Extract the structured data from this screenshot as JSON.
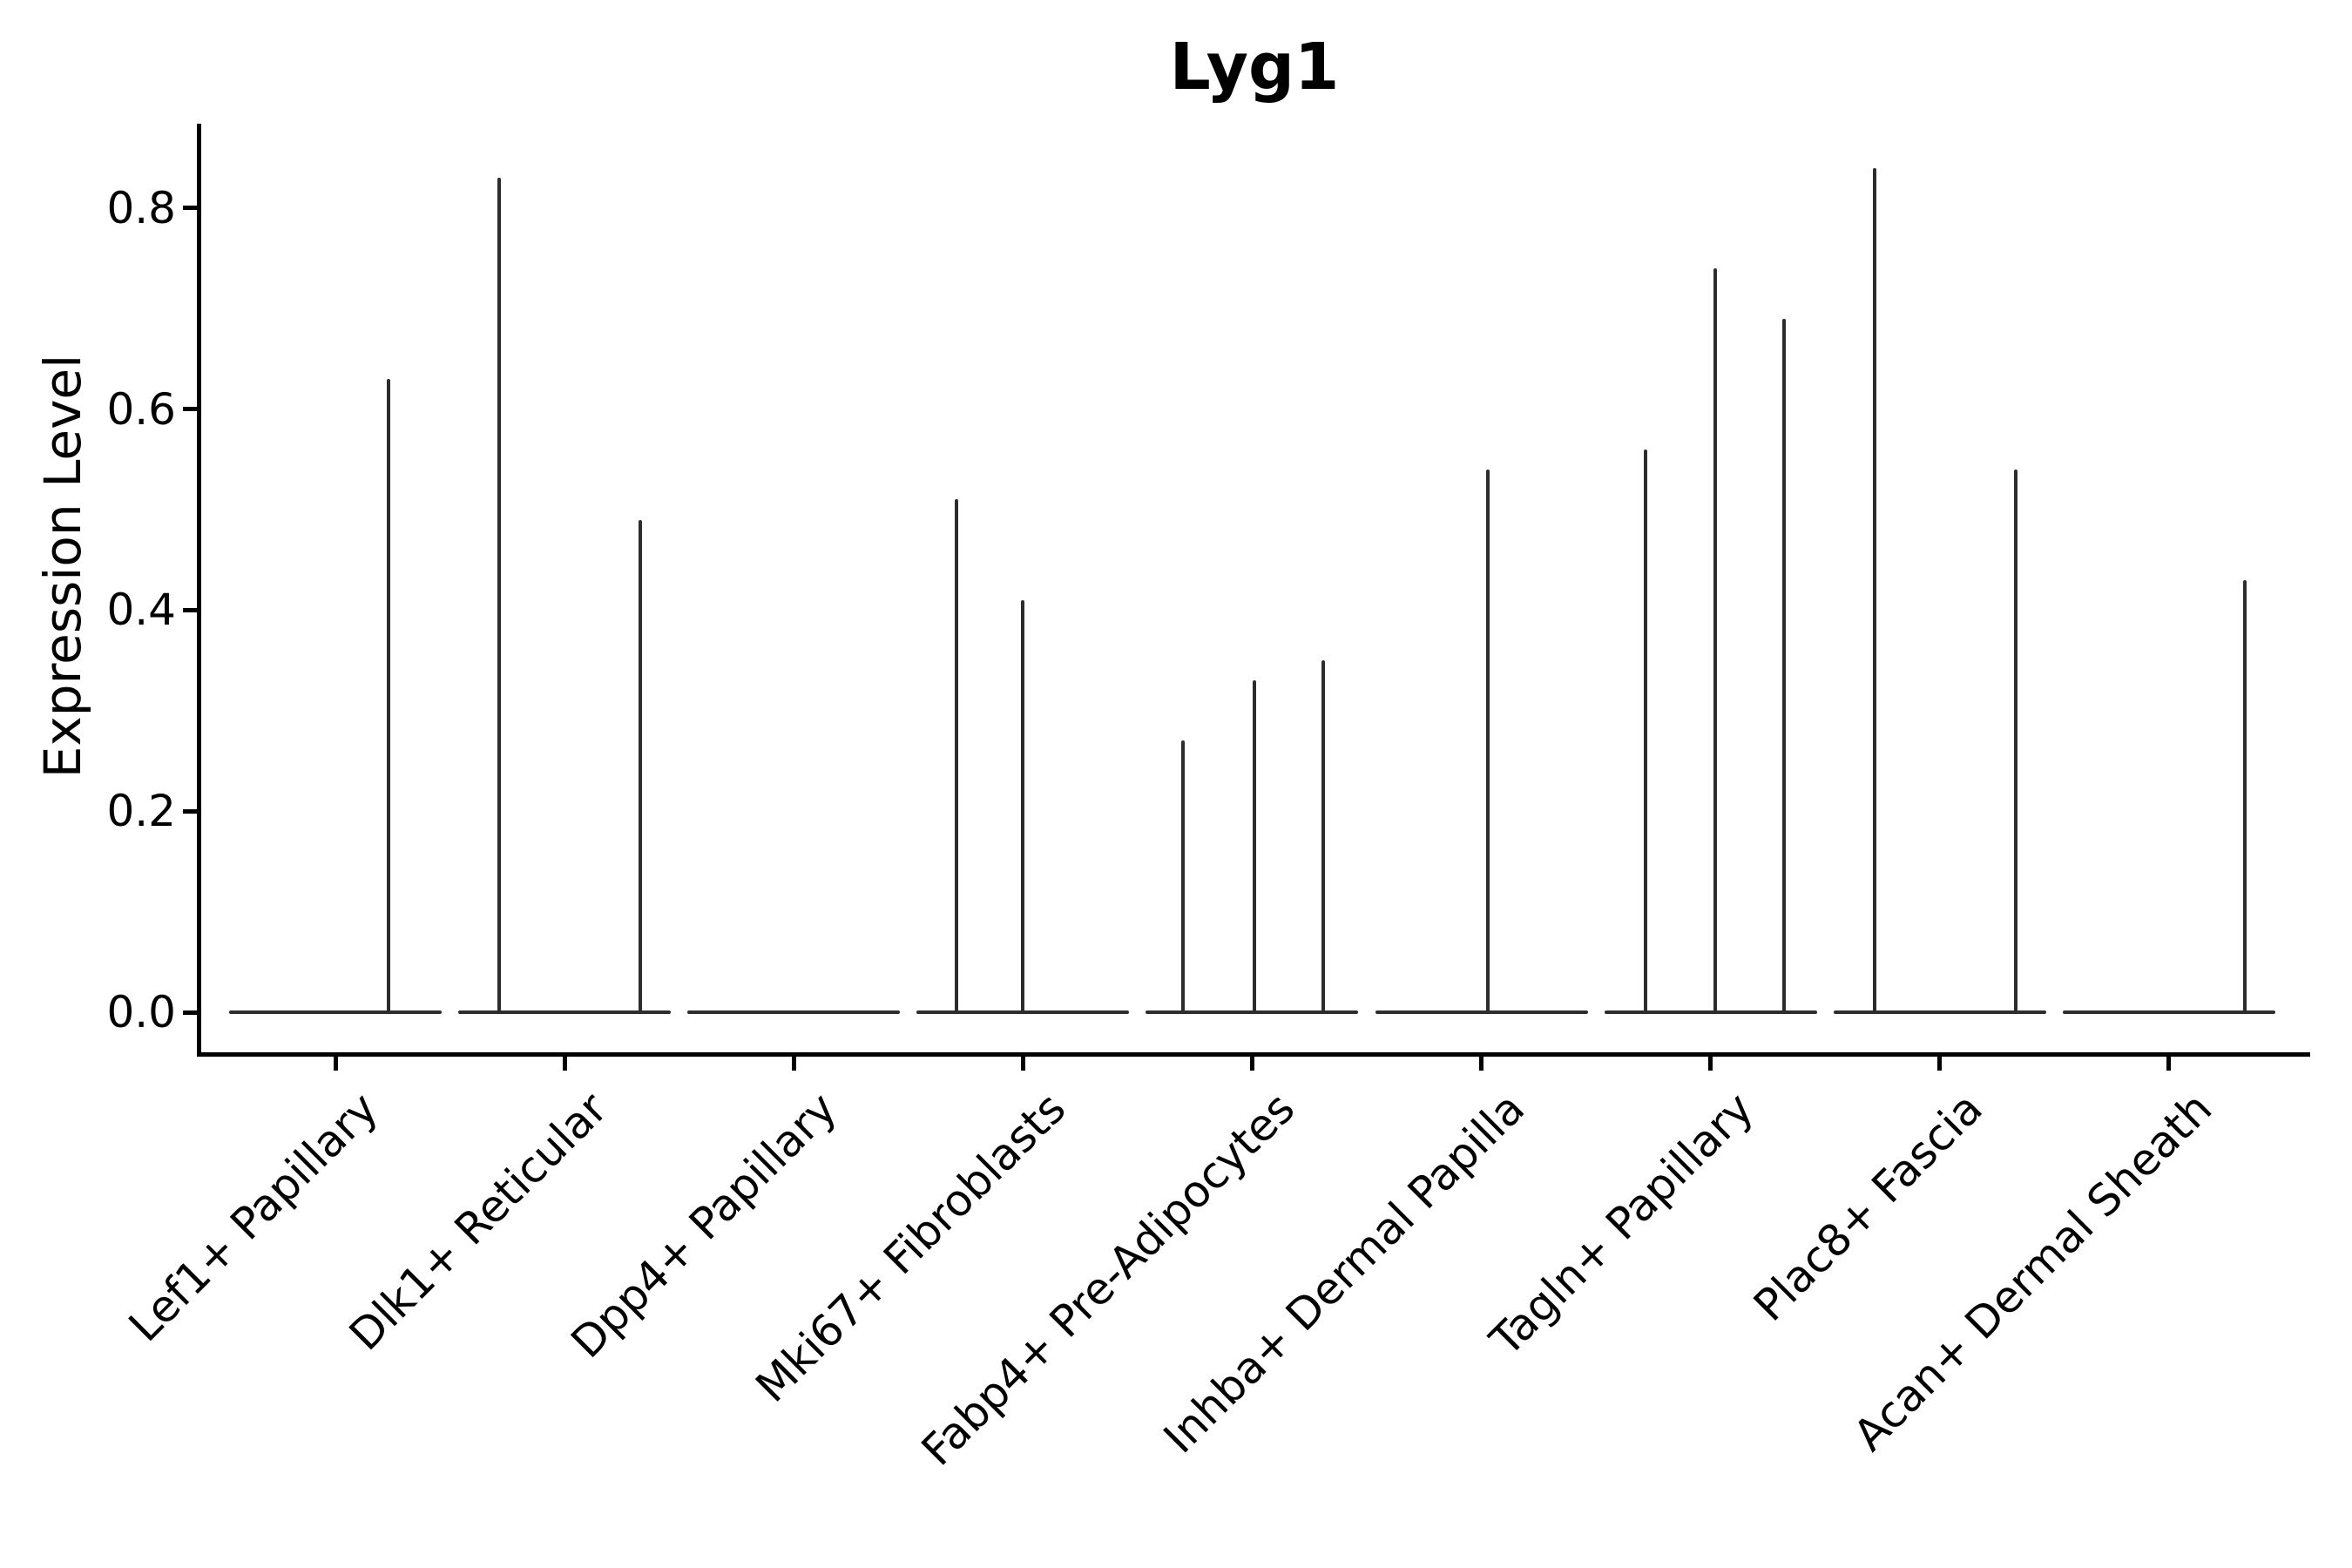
{
  "title": "Lyg1",
  "chart_data": {
    "type": "violin",
    "title": "Lyg1",
    "ylabel": "Expression Level",
    "xlabel": "",
    "ylim": [
      0,
      0.88
    ],
    "yticks": [
      0.0,
      0.2,
      0.4,
      0.6,
      0.8
    ],
    "ytick_labels": [
      "0.0",
      "0.2",
      "0.4",
      "0.6",
      "0.8"
    ],
    "grid": false,
    "legend": "none",
    "x_label_rotation_deg": 45,
    "categories": [
      "Lef1+ Papillary",
      "Dlk1+ Reticular",
      "Dpp4+ Papillary",
      "Mki67+ Fibroblasts",
      "Fabp4+ Pre-Adipocytes",
      "Inhba+ Dermal Papilla",
      "Tagln+ Papillary",
      "Plac8+ Fascia",
      "Acan+ Dermal Sheath"
    ],
    "groups": [
      {
        "label": "Lef1+ Papillary",
        "violins": [
          {
            "pos": 0.23,
            "max": 0.63
          }
        ]
      },
      {
        "label": "Dlk1+ Reticular",
        "violins": [
          {
            "pos": -0.285,
            "max": 0.83
          },
          {
            "pos": 0.33,
            "max": 0.49
          }
        ]
      },
      {
        "label": "Dpp4+ Papillary",
        "violins": []
      },
      {
        "label": "Mki67+ Fibroblasts",
        "violins": [
          {
            "pos": -0.29,
            "max": 0.51
          },
          {
            "pos": 0.0,
            "max": 0.41
          }
        ]
      },
      {
        "label": "Fabp4+ Pre-Adipocytes",
        "violins": [
          {
            "pos": -0.3,
            "max": 0.27
          },
          {
            "pos": 0.01,
            "max": 0.33
          },
          {
            "pos": 0.31,
            "max": 0.35
          }
        ]
      },
      {
        "label": "Inhba+ Dermal Papilla",
        "violins": [
          {
            "pos": 0.03,
            "max": 0.54
          }
        ]
      },
      {
        "label": "Tagln+ Papillary",
        "violins": [
          {
            "pos": -0.285,
            "max": 0.56
          },
          {
            "pos": 0.02,
            "max": 0.74
          },
          {
            "pos": 0.32,
            "max": 0.69
          }
        ]
      },
      {
        "label": "Plac8+ Fascia",
        "violins": [
          {
            "pos": -0.285,
            "max": 0.84
          },
          {
            "pos": 0.33,
            "max": 0.54
          }
        ]
      },
      {
        "label": "Acan+ Dermal Sheath",
        "violins": [
          {
            "pos": 0.33,
            "max": 0.43
          }
        ]
      }
    ],
    "colors": {
      "violin": "#2d2d2d",
      "axis": "#000000",
      "text": "#000000",
      "background": "#ffffff"
    }
  }
}
